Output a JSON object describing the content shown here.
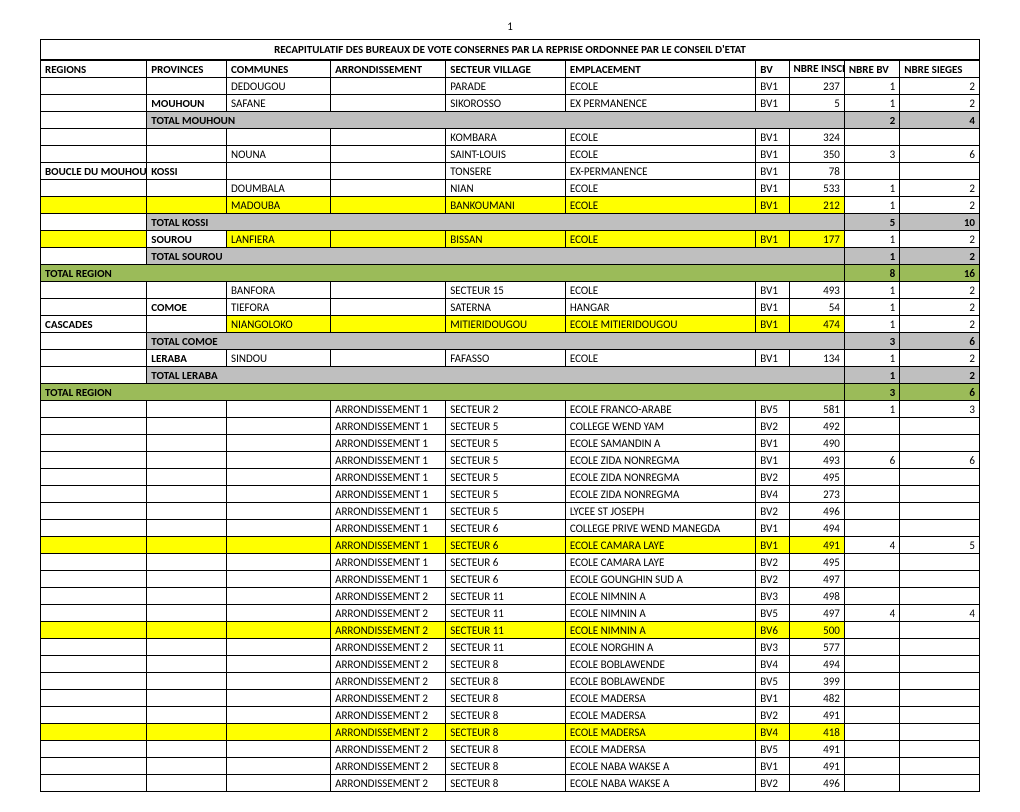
{
  "page_number": "1",
  "title": "RECAPITULATIF DES BUREAUX DE VOTE CONSERNES PAR LA REPRISE ORDONNEE PAR LE CONSEIL D'ETAT",
  "columns": [
    "REGIONS",
    "PROVINCES",
    "COMMUNES",
    "ARRONDISSEMENT",
    "SECTEUR VILLAGE",
    "EMPLACEMENT",
    "BV",
    "NBRE INSCRIT",
    "NBRE BV",
    "NBRE SIEGES"
  ],
  "colors": {
    "gray": "#bfbfbf",
    "olive": "#9bbb59",
    "yellow": "#ffff00"
  },
  "rows": [
    {
      "regions": "",
      "provinces": "",
      "communes": "DEDOUGOU",
      "arr": "",
      "secteur": "PARADE",
      "emp": "ECOLE",
      "bv": "BV1",
      "ninscrit": "237",
      "nbv": "1",
      "nsieges": "2",
      "hl": ""
    },
    {
      "regions": "",
      "provinces": "MOUHOUN",
      "communes": "SAFANE",
      "arr": "",
      "secteur": "SIKOROSSO",
      "emp": "EX PERMANENCE",
      "bv": "BV1",
      "ninscrit": "5",
      "nbv": "1",
      "nsieges": "2",
      "hl": "",
      "prov_b": true
    },
    {
      "regions": "",
      "provinces": "TOTAL MOUHOUN",
      "communes": "",
      "arr": "",
      "secteur": "",
      "emp": "",
      "bv": "",
      "ninscrit": "",
      "nbv": "2",
      "nsieges": "4",
      "hl": "gray",
      "wide": "prov",
      "b": true
    },
    {
      "regions": "",
      "provinces": "",
      "communes": "",
      "arr": "",
      "secteur": "KOMBARA",
      "emp": "ECOLE",
      "bv": "BV1",
      "ninscrit": "324",
      "nbv": "",
      "nsieges": "",
      "hl": ""
    },
    {
      "regions": "",
      "provinces": "",
      "communes": "NOUNA",
      "arr": "",
      "secteur": "SAINT-LOUIS",
      "emp": "ECOLE",
      "bv": "BV1",
      "ninscrit": "350",
      "nbv": "3",
      "nsieges": "6",
      "hl": ""
    },
    {
      "regions": "BOUCLE DU MOUHOUN",
      "provinces": "KOSSI",
      "communes": "",
      "arr": "",
      "secteur": "TONSERE",
      "emp": "EX-PERMANENCE",
      "bv": "BV1",
      "ninscrit": "78",
      "nbv": "",
      "nsieges": "",
      "hl": "",
      "reg_b": true,
      "prov_b": true
    },
    {
      "regions": "",
      "provinces": "",
      "communes": "DOUMBALA",
      "arr": "",
      "secteur": "NIAN",
      "emp": "ECOLE",
      "bv": "BV1",
      "ninscrit": "533",
      "nbv": "1",
      "nsieges": "2",
      "hl": ""
    },
    {
      "regions": "",
      "provinces": "",
      "communes": "MADOUBA",
      "arr": "",
      "secteur": "BANKOUMANI",
      "emp": "ECOLE",
      "bv": "BV1",
      "ninscrit": "212",
      "nbv": "1",
      "nsieges": "2",
      "hl": "yellow"
    },
    {
      "regions": "",
      "provinces": "TOTAL KOSSI",
      "communes": "",
      "arr": "",
      "secteur": "",
      "emp": "",
      "bv": "",
      "ninscrit": "",
      "nbv": "5",
      "nsieges": "10",
      "hl": "gray",
      "wide": "prov",
      "b": true
    },
    {
      "regions": "",
      "provinces": "SOUROU",
      "communes": "LANFIERA",
      "arr": "",
      "secteur": "BISSAN",
      "emp": "ECOLE",
      "bv": "BV1",
      "ninscrit": "177",
      "nbv": "1",
      "nsieges": "2",
      "hl": "yellow",
      "prov_b": true,
      "prov_plain": true
    },
    {
      "regions": "",
      "provinces": "TOTAL SOUROU",
      "communes": "",
      "arr": "",
      "secteur": "",
      "emp": "",
      "bv": "",
      "ninscrit": "",
      "nbv": "1",
      "nsieges": "2",
      "hl": "gray",
      "wide": "prov",
      "b": true
    },
    {
      "regions": "TOTAL REGION",
      "provinces": "",
      "communes": "",
      "arr": "",
      "secteur": "",
      "emp": "",
      "bv": "",
      "ninscrit": "",
      "nbv": "8",
      "nsieges": "16",
      "hl": "olive",
      "wide": "reg",
      "b": true
    },
    {
      "regions": "",
      "provinces": "",
      "communes": "BANFORA",
      "arr": "",
      "secteur": "SECTEUR 15",
      "emp": "ECOLE",
      "bv": "BV1",
      "ninscrit": "493",
      "nbv": "1",
      "nsieges": "2",
      "hl": ""
    },
    {
      "regions": "",
      "provinces": "COMOE",
      "communes": "TIEFORA",
      "arr": "",
      "secteur": "SATERNA",
      "emp": "HANGAR",
      "bv": "BV1",
      "ninscrit": "54",
      "nbv": "1",
      "nsieges": "2",
      "hl": "",
      "prov_b": true
    },
    {
      "regions": "CASCADES",
      "provinces": "",
      "communes": "NIANGOLOKO",
      "arr": "",
      "secteur": "MITIERIDOUGOU",
      "emp": "ECOLE MITIERIDOUGOU",
      "bv": "BV1",
      "ninscrit": "474",
      "nbv": "1",
      "nsieges": "2",
      "hl": "yellow",
      "reg_b": true,
      "reg_plain": true
    },
    {
      "regions": "",
      "provinces": "TOTAL COMOE",
      "communes": "",
      "arr": "",
      "secteur": "",
      "emp": "",
      "bv": "",
      "ninscrit": "",
      "nbv": "3",
      "nsieges": "6",
      "hl": "gray",
      "wide": "prov",
      "b": true
    },
    {
      "regions": "",
      "provinces": "LERABA",
      "communes": "SINDOU",
      "arr": "",
      "secteur": "FAFASSO",
      "emp": "ECOLE",
      "bv": "BV1",
      "ninscrit": "134",
      "nbv": "1",
      "nsieges": "2",
      "hl": "",
      "prov_b": true
    },
    {
      "regions": "",
      "provinces": "TOTAL LERABA",
      "communes": "",
      "arr": "",
      "secteur": "",
      "emp": "",
      "bv": "",
      "ninscrit": "",
      "nbv": "1",
      "nsieges": "2",
      "hl": "gray",
      "wide": "prov",
      "b": true
    },
    {
      "regions": "TOTAL REGION",
      "provinces": "",
      "communes": "",
      "arr": "",
      "secteur": "",
      "emp": "",
      "bv": "",
      "ninscrit": "",
      "nbv": "3",
      "nsieges": "6",
      "hl": "olive",
      "wide": "reg",
      "b": true
    },
    {
      "regions": "",
      "provinces": "",
      "communes": "",
      "arr": "ARRONDISSEMENT 1",
      "secteur": "SECTEUR 2",
      "emp": "ECOLE FRANCO-ARABE",
      "bv": "BV5",
      "ninscrit": "581",
      "nbv": "1",
      "nsieges": "3",
      "hl": ""
    },
    {
      "regions": "",
      "provinces": "",
      "communes": "",
      "arr": "ARRONDISSEMENT 1",
      "secteur": "SECTEUR 5",
      "emp": "COLLEGE WEND YAM",
      "bv": "BV2",
      "ninscrit": "492",
      "nbv": "",
      "nsieges": "",
      "hl": ""
    },
    {
      "regions": "",
      "provinces": "",
      "communes": "",
      "arr": "ARRONDISSEMENT 1",
      "secteur": "SECTEUR 5",
      "emp": "ECOLE SAMANDIN A",
      "bv": "BV1",
      "ninscrit": "490",
      "nbv": "",
      "nsieges": "",
      "hl": ""
    },
    {
      "regions": "",
      "provinces": "",
      "communes": "",
      "arr": "ARRONDISSEMENT 1",
      "secteur": "SECTEUR 5",
      "emp": "ECOLE ZIDA NONREGMA",
      "bv": "BV1",
      "ninscrit": "493",
      "nbv": "6",
      "nsieges": "6",
      "hl": ""
    },
    {
      "regions": "",
      "provinces": "",
      "communes": "",
      "arr": "ARRONDISSEMENT 1",
      "secteur": "SECTEUR 5",
      "emp": "ECOLE ZIDA NONREGMA",
      "bv": "BV2",
      "ninscrit": "495",
      "nbv": "",
      "nsieges": "",
      "hl": ""
    },
    {
      "regions": "",
      "provinces": "",
      "communes": "",
      "arr": "ARRONDISSEMENT 1",
      "secteur": "SECTEUR 5",
      "emp": "ECOLE ZIDA NONREGMA",
      "bv": "BV4",
      "ninscrit": "273",
      "nbv": "",
      "nsieges": "",
      "hl": ""
    },
    {
      "regions": "",
      "provinces": "",
      "communes": "",
      "arr": "ARRONDISSEMENT 1",
      "secteur": "SECTEUR 5",
      "emp": "LYCEE ST JOSEPH",
      "bv": "BV2",
      "ninscrit": "496",
      "nbv": "",
      "nsieges": "",
      "hl": ""
    },
    {
      "regions": "",
      "provinces": "",
      "communes": "",
      "arr": "ARRONDISSEMENT 1",
      "secteur": "SECTEUR 6",
      "emp": "COLLEGE PRIVE WEND MANEGDA",
      "bv": "BV1",
      "ninscrit": "494",
      "nbv": "",
      "nsieges": "",
      "hl": ""
    },
    {
      "regions": "",
      "provinces": "",
      "communes": "",
      "arr": "ARRONDISSEMENT 1",
      "secteur": "SECTEUR 6",
      "emp": "ECOLE CAMARA LAYE",
      "bv": "BV1",
      "ninscrit": "491",
      "nbv": "4",
      "nsieges": "5",
      "hl": "yellow"
    },
    {
      "regions": "",
      "provinces": "",
      "communes": "",
      "arr": "ARRONDISSEMENT 1",
      "secteur": "SECTEUR 6",
      "emp": "ECOLE CAMARA LAYE",
      "bv": "BV2",
      "ninscrit": "495",
      "nbv": "",
      "nsieges": "",
      "hl": ""
    },
    {
      "regions": "",
      "provinces": "",
      "communes": "",
      "arr": "ARRONDISSEMENT 1",
      "secteur": "SECTEUR 6",
      "emp": "ECOLE GOUNGHIN SUD A",
      "bv": "BV2",
      "ninscrit": "497",
      "nbv": "",
      "nsieges": "",
      "hl": ""
    },
    {
      "regions": "",
      "provinces": "",
      "communes": "",
      "arr": "ARRONDISSEMENT 2",
      "secteur": "SECTEUR 11",
      "emp": "ECOLE NIMNIN A",
      "bv": "BV3",
      "ninscrit": "498",
      "nbv": "",
      "nsieges": "",
      "hl": ""
    },
    {
      "regions": "",
      "provinces": "",
      "communes": "",
      "arr": "ARRONDISSEMENT 2",
      "secteur": "SECTEUR 11",
      "emp": "ECOLE NIMNIN A",
      "bv": "BV5",
      "ninscrit": "497",
      "nbv": "4",
      "nsieges": "4",
      "hl": ""
    },
    {
      "regions": "",
      "provinces": "",
      "communes": "",
      "arr": "ARRONDISSEMENT 2",
      "secteur": "SECTEUR 11",
      "emp": "ECOLE NIMNIN A",
      "bv": "BV6",
      "ninscrit": "500",
      "nbv": "",
      "nsieges": "",
      "hl": "yellow"
    },
    {
      "regions": "",
      "provinces": "",
      "communes": "",
      "arr": "ARRONDISSEMENT 2",
      "secteur": "SECTEUR 11",
      "emp": "ECOLE NORGHIN A",
      "bv": "BV3",
      "ninscrit": "577",
      "nbv": "",
      "nsieges": "",
      "hl": ""
    },
    {
      "regions": "",
      "provinces": "",
      "communes": "",
      "arr": "ARRONDISSEMENT 2",
      "secteur": "SECTEUR 8",
      "emp": "ECOLE BOBLAWENDE",
      "bv": "BV4",
      "ninscrit": "494",
      "nbv": "",
      "nsieges": "",
      "hl": ""
    },
    {
      "regions": "",
      "provinces": "",
      "communes": "",
      "arr": "ARRONDISSEMENT 2",
      "secteur": "SECTEUR 8",
      "emp": "ECOLE BOBLAWENDE",
      "bv": "BV5",
      "ninscrit": "399",
      "nbv": "",
      "nsieges": "",
      "hl": ""
    },
    {
      "regions": "",
      "provinces": "",
      "communes": "",
      "arr": "ARRONDISSEMENT 2",
      "secteur": "SECTEUR 8",
      "emp": "ECOLE MADERSA",
      "bv": "BV1",
      "ninscrit": "482",
      "nbv": "",
      "nsieges": "",
      "hl": ""
    },
    {
      "regions": "",
      "provinces": "",
      "communes": "",
      "arr": "ARRONDISSEMENT 2",
      "secteur": "SECTEUR 8",
      "emp": "ECOLE MADERSA",
      "bv": "BV2",
      "ninscrit": "491",
      "nbv": "",
      "nsieges": "",
      "hl": ""
    },
    {
      "regions": "",
      "provinces": "",
      "communes": "",
      "arr": "ARRONDISSEMENT 2",
      "secteur": "SECTEUR 8",
      "emp": "ECOLE MADERSA",
      "bv": "BV4",
      "ninscrit": "418",
      "nbv": "",
      "nsieges": "",
      "hl": "yellow"
    },
    {
      "regions": "",
      "provinces": "",
      "communes": "",
      "arr": "ARRONDISSEMENT 2",
      "secteur": "SECTEUR 8",
      "emp": "ECOLE MADERSA",
      "bv": "BV5",
      "ninscrit": "491",
      "nbv": "",
      "nsieges": "",
      "hl": ""
    },
    {
      "regions": "",
      "provinces": "",
      "communes": "",
      "arr": "ARRONDISSEMENT 2",
      "secteur": "SECTEUR 8",
      "emp": "ECOLE NABA WAKSE A",
      "bv": "BV1",
      "ninscrit": "491",
      "nbv": "",
      "nsieges": "",
      "hl": ""
    },
    {
      "regions": "",
      "provinces": "",
      "communes": "",
      "arr": "ARRONDISSEMENT 2",
      "secteur": "SECTEUR 8",
      "emp": "ECOLE NABA WAKSE A",
      "bv": "BV2",
      "ninscrit": "496",
      "nbv": "",
      "nsieges": "",
      "hl": ""
    }
  ]
}
